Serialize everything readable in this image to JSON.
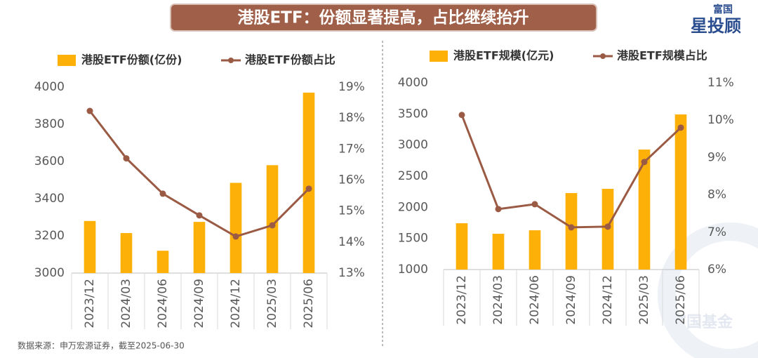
{
  "header": {
    "title": "港股ETF：份额显著提高，占比继续抬升",
    "logo_top": "富国",
    "logo_main": "星投顾"
  },
  "source": "数据来源：申万宏源证券，截至2025-06-30",
  "watermark": "富国基金",
  "chart_data": [
    {
      "type": "combo",
      "categories": [
        "2023/12",
        "2024/03",
        "2024/06",
        "2024/09",
        "2024/12",
        "2025/03",
        "2025/06"
      ],
      "series": [
        {
          "name": "港股ETF份额(亿份)",
          "type": "bar",
          "color": "#fdb008",
          "values": [
            3280,
            3215,
            3120,
            3275,
            3485,
            3580,
            3970
          ]
        },
        {
          "name": "港股ETF份额占比",
          "type": "line",
          "axis": "y2",
          "color": "#9a5a44",
          "values": [
            18.23,
            16.7,
            15.56,
            14.86,
            14.18,
            14.54,
            15.72
          ]
        }
      ],
      "ylim": [
        3000,
        4000
      ],
      "yticks": [
        3000,
        3200,
        3400,
        3600,
        3800,
        4000
      ],
      "y2lim": [
        13,
        19
      ],
      "y2ticks": [
        {
          "value": 13,
          "label": "13%"
        },
        {
          "value": 14,
          "label": "14%"
        },
        {
          "value": 15,
          "label": "15%"
        },
        {
          "value": 16,
          "label": "16%"
        },
        {
          "value": 17,
          "label": "17%"
        },
        {
          "value": 18,
          "label": "18%"
        },
        {
          "value": 19,
          "label": "19%"
        }
      ]
    },
    {
      "type": "combo",
      "categories": [
        "2023/12",
        "2024/03",
        "2024/06",
        "2024/09",
        "2024/12",
        "2025/03",
        "2025/06"
      ],
      "series": [
        {
          "name": "港股ETF规模(亿元)",
          "type": "bar",
          "color": "#fdb008",
          "values": [
            1744,
            1575,
            1631,
            2229,
            2297,
            2928,
            3492
          ]
        },
        {
          "name": "港股ETF规模占比",
          "type": "line",
          "axis": "y2",
          "color": "#9a5a44",
          "values": [
            10.14,
            7.62,
            7.75,
            7.13,
            7.15,
            8.88,
            9.8
          ]
        }
      ],
      "ylim": [
        1000,
        4000
      ],
      "yticks": [
        1000,
        1500,
        2000,
        2500,
        3000,
        3500,
        4000
      ],
      "y2lim": [
        6,
        11
      ],
      "y2ticks": [
        {
          "value": 6,
          "label": "6%"
        },
        {
          "value": 7,
          "label": "7%"
        },
        {
          "value": 8,
          "label": "8%"
        },
        {
          "value": 9,
          "label": "9%"
        },
        {
          "value": 10,
          "label": "10%"
        },
        {
          "value": 11,
          "label": "11%"
        }
      ]
    }
  ]
}
